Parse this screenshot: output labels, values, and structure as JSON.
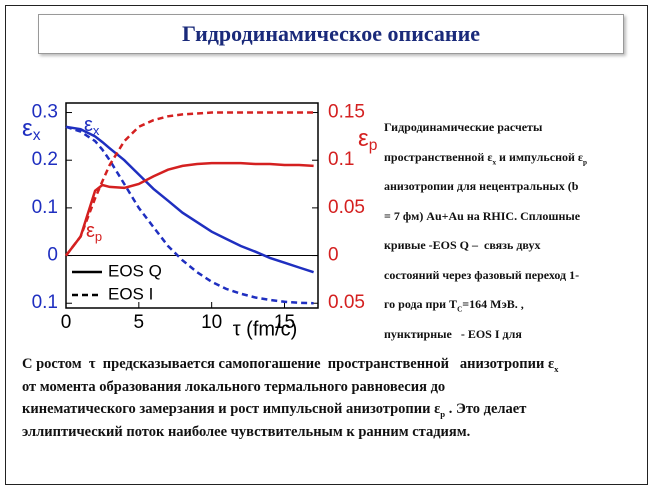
{
  "header": {
    "title": "Гидродинамическое описание"
  },
  "chart_data": {
    "type": "line",
    "y_label": [
      "ε",
      "x"
    ],
    "y2_label": [
      "ε",
      "p"
    ],
    "x_label": "τ (fm/c)",
    "annotations": [
      {
        "text": [
          "ε",
          "x"
        ],
        "color": "#1f2fc0"
      },
      {
        "text": [
          "ε",
          "p"
        ],
        "color": "#d42020"
      }
    ],
    "x": [
      0,
      1,
      2,
      2.5,
      3,
      4,
      5,
      6,
      7,
      8,
      9,
      10,
      11,
      12,
      13,
      14,
      15,
      16,
      17
    ],
    "xlim": [
      0,
      17.3
    ],
    "xticks": [
      0,
      5,
      10,
      15
    ],
    "ylim": [
      -0.11,
      0.32
    ],
    "yticks": [
      {
        "value": -0.1,
        "label": "0.1"
      },
      0,
      0.1,
      0.2,
      0.3
    ],
    "y2lim": [
      -0.055,
      0.16
    ],
    "y2ticks": [
      {
        "value": -0.05,
        "label": "0.05"
      },
      0,
      0.05,
      0.1,
      0.15
    ],
    "zero_line": true,
    "series": [
      {
        "name": "EOS Q",
        "color": "#1f2fc0",
        "dash": false,
        "axis": "y",
        "values": [
          0.27,
          0.265,
          0.25,
          0.238,
          0.225,
          0.2,
          0.17,
          0.14,
          0.115,
          0.09,
          0.07,
          0.05,
          0.035,
          0.02,
          0.008,
          -0.005,
          -0.015,
          -0.025,
          -0.035
        ]
      },
      {
        "name": "EOS I",
        "color": "#1f2fc0",
        "dash": true,
        "axis": "y",
        "values": [
          0.27,
          0.26,
          0.24,
          0.222,
          0.2,
          0.15,
          0.1,
          0.06,
          0.02,
          -0.01,
          -0.035,
          -0.055,
          -0.07,
          -0.08,
          -0.088,
          -0.093,
          -0.097,
          -0.099,
          -0.1
        ]
      },
      {
        "name": "EOS Q",
        "color": "#d42020",
        "dash": false,
        "axis": "y2",
        "values": [
          0,
          0.02,
          0.068,
          0.074,
          0.072,
          0.071,
          0.075,
          0.083,
          0.09,
          0.094,
          0.096,
          0.097,
          0.097,
          0.097,
          0.096,
          0.096,
          0.095,
          0.095,
          0.094
        ]
      },
      {
        "name": "EOS I",
        "color": "#d42020",
        "dash": true,
        "axis": "y2",
        "values": [
          0,
          0.02,
          0.06,
          0.078,
          0.095,
          0.12,
          0.135,
          0.142,
          0.146,
          0.148,
          0.149,
          0.15,
          0.15,
          0.15,
          0.15,
          0.15,
          0.15,
          0.15,
          0.15
        ]
      }
    ]
  },
  "side_text": [
    [
      "Гидродинамические расчеты"
    ],
    [
      "пространственной ε",
      "x",
      " и импульсной ε",
      "p"
    ],
    [
      "анизотропии для нецентральных (b"
    ],
    [
      "= 7 фм) Au+Au на RHIC. Сплошные"
    ],
    [
      "кривые -EOS Q –  связь двух"
    ],
    [
      "состояний через фазовый переход 1-"
    ],
    [
      "го рода при T",
      "C",
      "=164 МэВ. ,"
    ],
    [
      "пунктирные   - EOS I для"
    ]
  ],
  "bottom_text": [
    [
      "С ростом  τ  предсказывается самопогашение  пространственной   анизотропии ε",
      "x"
    ],
    [
      "от момента образования локального термального равновесия до"
    ],
    [
      "кинематического замерзания и рост импульсной анизотропии ε",
      "p",
      " . Это делает"
    ],
    [
      "эллиптический поток наиболее чувствительным к ранним стадиям."
    ]
  ]
}
